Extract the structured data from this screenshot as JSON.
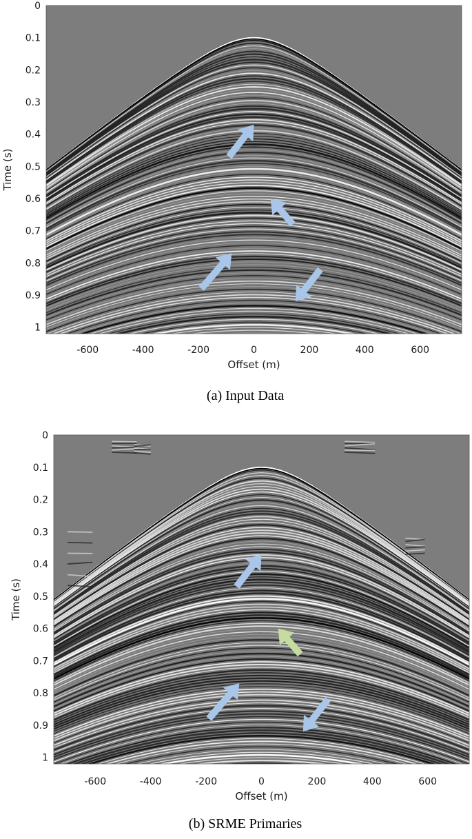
{
  "figure": {
    "panels": [
      {
        "caption": "(a) Input Data",
        "xlabel": "Offset (m)",
        "ylabel": "Time (s)",
        "xticks": [
          "-600",
          "-400",
          "-200",
          "0",
          "200",
          "400",
          "600"
        ],
        "yticks": [
          "0",
          "0.1",
          "0.2",
          "0.3",
          "0.4",
          "0.5",
          "0.6",
          "0.7",
          "0.8",
          "0.9",
          "1"
        ],
        "arrow_color": "#a9c6e8",
        "highlight_arrow_color": "#c5dba0"
      },
      {
        "caption": "(b) SRME Primaries",
        "xlabel": "Offset (m)",
        "ylabel": "Time (s)",
        "xticks": [
          "-600",
          "-400",
          "-200",
          "0",
          "200",
          "400",
          "600"
        ],
        "yticks": [
          "0",
          "0.1",
          "0.2",
          "0.3",
          "0.4",
          "0.5",
          "0.6",
          "0.7",
          "0.8",
          "0.9",
          "1"
        ],
        "arrow_color": "#a9c6e8",
        "highlight_arrow_color": "#c5dba0"
      }
    ]
  },
  "chart_data": [
    {
      "type": "heatmap",
      "title": "",
      "xlabel": "Offset (m)",
      "ylabel": "Time (s)",
      "xlim": [
        -750,
        750
      ],
      "ylim": [
        0,
        1.02
      ],
      "y_inverted": true,
      "colormap": "gray",
      "annotations": [
        {
          "kind": "arrow",
          "color": "light-blue",
          "tail": [
            -90,
            0.47
          ],
          "head": [
            0,
            0.37
          ]
        },
        {
          "kind": "arrow",
          "color": "light-blue",
          "tail": [
            140,
            0.68
          ],
          "head": [
            60,
            0.6
          ]
        },
        {
          "kind": "arrow",
          "color": "light-blue",
          "tail": [
            -190,
            0.88
          ],
          "head": [
            -80,
            0.77
          ]
        },
        {
          "kind": "arrow",
          "color": "light-blue",
          "tail": [
            240,
            0.82
          ],
          "head": [
            150,
            0.92
          ]
        }
      ]
    },
    {
      "type": "heatmap",
      "title": "",
      "xlabel": "Offset (m)",
      "ylabel": "Time (s)",
      "xlim": [
        -750,
        750
      ],
      "ylim": [
        0,
        1.02
      ],
      "y_inverted": true,
      "colormap": "gray",
      "annotations": [
        {
          "kind": "arrow",
          "color": "light-blue",
          "tail": [
            -90,
            0.47
          ],
          "head": [
            0,
            0.37
          ]
        },
        {
          "kind": "arrow",
          "color": "light-green",
          "tail": [
            140,
            0.68
          ],
          "head": [
            60,
            0.6
          ]
        },
        {
          "kind": "arrow",
          "color": "light-blue",
          "tail": [
            -190,
            0.88
          ],
          "head": [
            -80,
            0.77
          ]
        },
        {
          "kind": "arrow",
          "color": "light-blue",
          "tail": [
            240,
            0.82
          ],
          "head": [
            150,
            0.92
          ]
        }
      ]
    }
  ]
}
